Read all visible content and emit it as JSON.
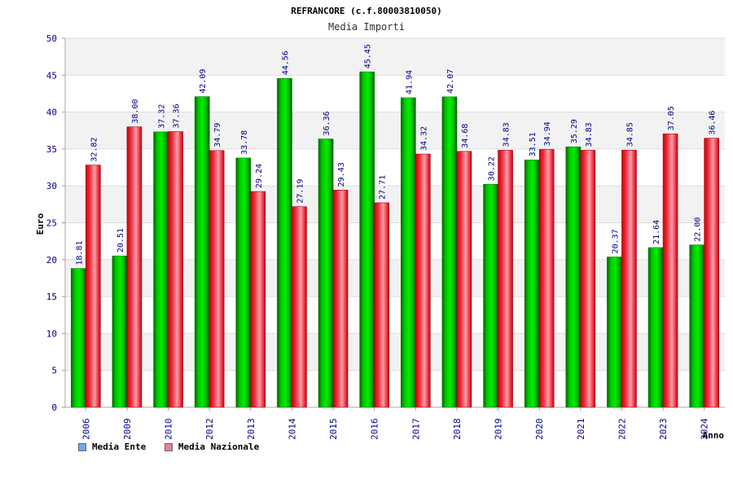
{
  "chart_data": {
    "type": "bar",
    "title": "REFRANCORE (c.f.80003810050)",
    "subtitle": "Media Importi",
    "xlabel": "Anno",
    "ylabel": "Euro",
    "ylim": [
      0,
      50
    ],
    "yticks": [
      0,
      5,
      10,
      15,
      20,
      25,
      30,
      35,
      40,
      45,
      50
    ],
    "grid": true,
    "legend_position": "bottom-left",
    "categories": [
      "2006",
      "2009",
      "2010",
      "2012",
      "2013",
      "2014",
      "2015",
      "2016",
      "2017",
      "2018",
      "2019",
      "2020",
      "2021",
      "2022",
      "2023",
      "2024"
    ],
    "series": [
      {
        "name": "Media Ente",
        "color": "#00bb00",
        "legend_color": "#6fa8ea",
        "values": [
          18.81,
          20.51,
          37.32,
          42.09,
          33.78,
          44.56,
          36.36,
          45.45,
          41.94,
          42.07,
          30.22,
          33.51,
          35.29,
          20.37,
          21.64,
          22.0
        ],
        "labels": [
          "18.81",
          "20.51",
          "37.32",
          "42.09",
          "33.78",
          "44.56",
          "36.36",
          "45.45",
          "41.94",
          "42.07",
          "30.22",
          "33.51",
          "35.29",
          "20.37",
          "21.64",
          "22.00"
        ]
      },
      {
        "name": "Media Nazionale",
        "color": "#ee2233",
        "legend_color": "#e87fa8",
        "values": [
          32.82,
          38.0,
          37.36,
          34.79,
          29.24,
          27.19,
          29.43,
          27.71,
          34.32,
          34.68,
          34.83,
          34.94,
          34.83,
          34.85,
          37.05,
          36.46
        ],
        "labels": [
          "32.82",
          "38.00",
          "37.36",
          "34.79",
          "29.24",
          "27.19",
          "29.43",
          "27.71",
          "34.32",
          "34.68",
          "34.83",
          "34.94",
          "34.83",
          "34.85",
          "37.05",
          "36.46"
        ]
      }
    ]
  }
}
